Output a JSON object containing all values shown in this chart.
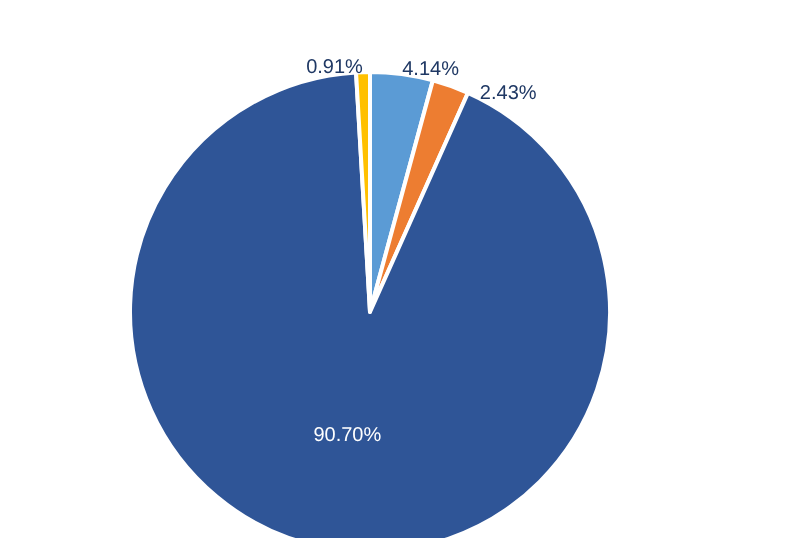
{
  "chart_data": {
    "type": "pie",
    "categories": [
      null,
      null,
      null,
      null
    ],
    "values": [
      4.14,
      2.43,
      90.7,
      0.91
    ],
    "colors": [
      "#5b9bd5",
      "#ed7d31",
      "#2f5597",
      "#ffc000"
    ],
    "value_labels": [
      "4.14%",
      "2.43%",
      "90.70%",
      "0.91%"
    ]
  }
}
